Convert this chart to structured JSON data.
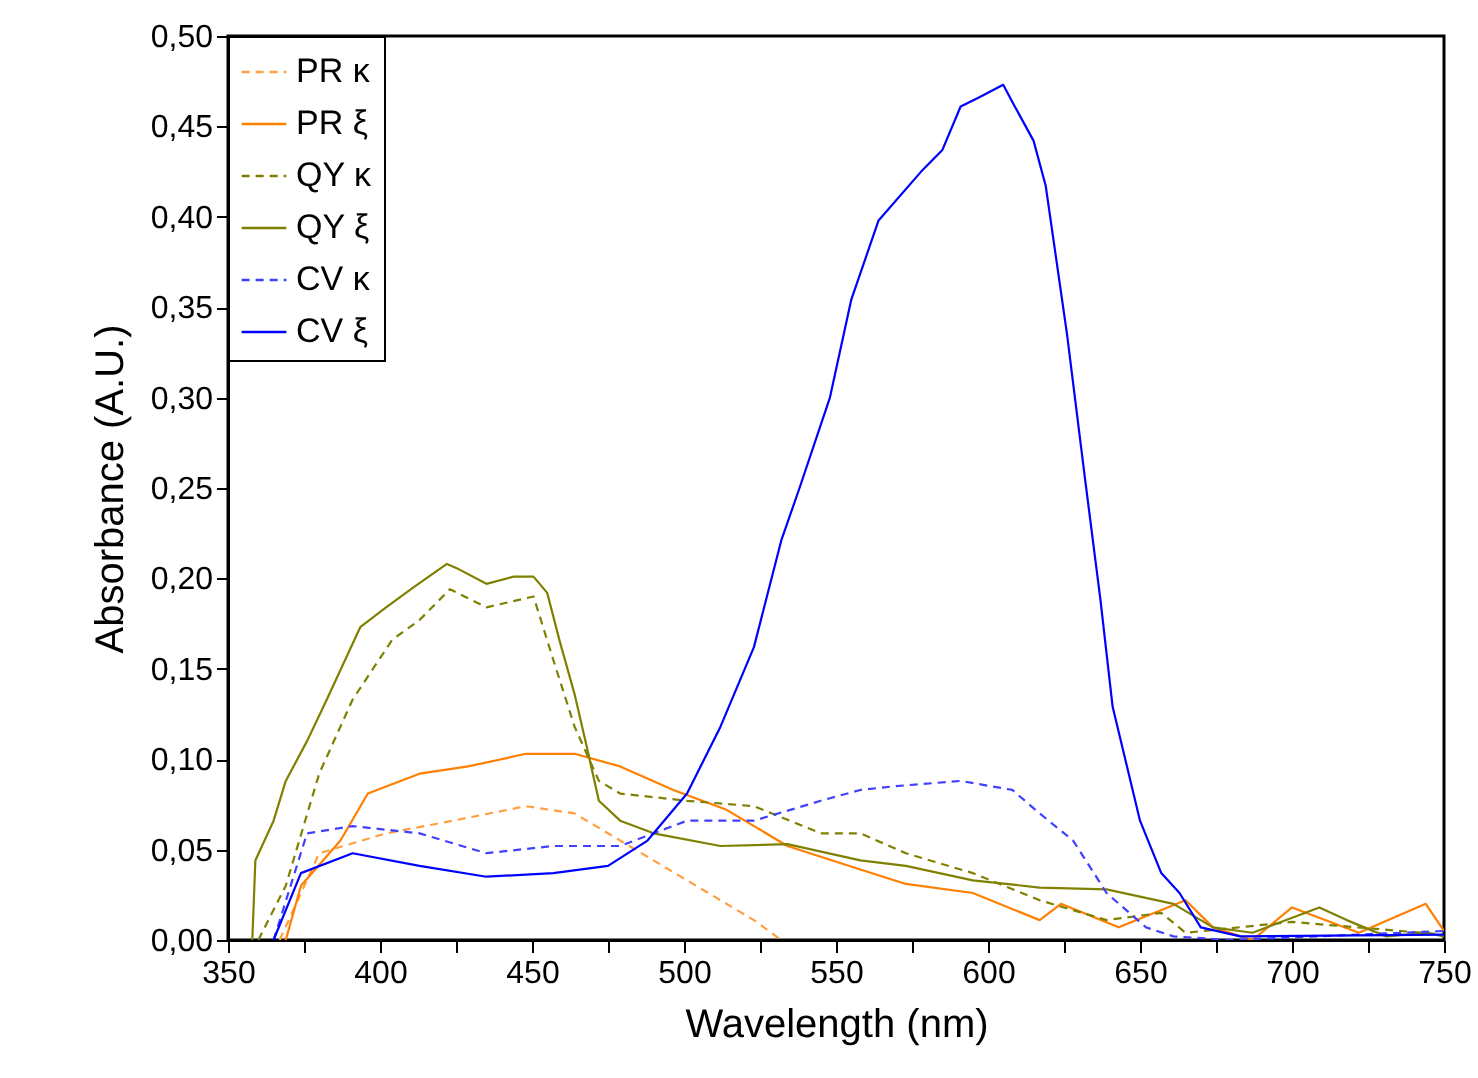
{
  "chart_data": {
    "type": "line",
    "xlabel": "Wavelength (nm)",
    "ylabel": "Absorbance (A.U.)",
    "xlim": [
      350,
      750
    ],
    "xticks": [
      350,
      {
        "value": 375,
        "label": null
      },
      400,
      {
        "value": 425,
        "label": null
      },
      450,
      {
        "value": 475,
        "label": null
      },
      500,
      {
        "value": 525,
        "label": null
      },
      550,
      {
        "value": 575,
        "label": null
      },
      600,
      {
        "value": 625,
        "label": null
      },
      650,
      {
        "value": 675,
        "label": null
      },
      700,
      {
        "value": 725,
        "label": null
      },
      750
    ],
    "ylim": [
      0,
      0.5
    ],
    "yticks": [
      {
        "value": 0,
        "label": "0,00"
      },
      {
        "value": 0.05,
        "label": "0,05"
      },
      {
        "value": 0.1,
        "label": "0,10"
      },
      {
        "value": 0.15,
        "label": "0,15"
      },
      {
        "value": 0.2,
        "label": "0,20"
      },
      {
        "value": 0.25,
        "label": "0,25"
      },
      {
        "value": 0.3,
        "label": "0,30"
      },
      {
        "value": 0.35,
        "label": "0,35"
      },
      {
        "value": 0.4,
        "label": "0,40"
      },
      {
        "value": 0.45,
        "label": "0,45"
      },
      {
        "value": 0.5,
        "label": "0,50"
      }
    ],
    "legend": "top left",
    "grid": false,
    "series": [
      {
        "name": "PR κ",
        "color": "#ffa040",
        "line_style": "dashed",
        "x": [
          367,
          380,
          402,
          424,
          448,
          464,
          479,
          501,
          523,
          532
        ],
        "values": [
          0,
          0.048,
          0.059,
          0.066,
          0.074,
          0.07,
          0.055,
          0.033,
          0.011,
          0
        ]
      },
      {
        "name": "PR ξ",
        "color": "#ff7f00",
        "line_style": "solid",
        "x": [
          369,
          374,
          387,
          396,
          413,
          429,
          448,
          464,
          479,
          496.5,
          514,
          534,
          558,
          573,
          595,
          617,
          624,
          643,
          665,
          674,
          687,
          700,
          722,
          744,
          750
        ],
        "values": [
          0,
          0.03,
          0.055,
          0.081,
          0.092,
          0.096,
          0.103,
          0.103,
          0.096,
          0.083,
          0.072,
          0.052,
          0.039,
          0.031,
          0.026,
          0.011,
          0.02,
          0.007,
          0.022,
          0.007,
          0,
          0.018,
          0.004,
          0.02,
          0.005
        ]
      },
      {
        "name": "QY κ",
        "color": "#808000",
        "line_style": "dashed",
        "x": [
          360,
          369,
          380,
          391,
          404,
          413,
          423,
          435,
          450.5,
          457,
          464,
          472,
          479,
          501,
          523,
          545,
          558,
          573,
          595,
          617,
          639,
          657,
          665,
          700,
          750
        ],
        "values": [
          0,
          0.03,
          0.092,
          0.133,
          0.166,
          0.177,
          0.194,
          0.184,
          0.19,
          0.155,
          0.118,
          0.088,
          0.081,
          0.077,
          0.074,
          0.059,
          0.059,
          0.048,
          0.037,
          0.022,
          0.011,
          0.015,
          0.004,
          0.01,
          0.003
        ]
      },
      {
        "name": "QY ξ",
        "color": "#808000",
        "line_style": "solid",
        "x": [
          358,
          359,
          365,
          369,
          376,
          382.5,
          393.5,
          402,
          411,
          422,
          426,
          435,
          444,
          450.5,
          455,
          459,
          464,
          468,
          472,
          479,
          490,
          512,
          534,
          558,
          573,
          595,
          617,
          639,
          661,
          674,
          687,
          709,
          718,
          731,
          744,
          750
        ],
        "values": [
          0,
          0.044,
          0.066,
          0.088,
          0.11,
          0.133,
          0.173,
          0.184,
          0.195,
          0.208,
          0.205,
          0.197,
          0.201,
          0.201,
          0.192,
          0.166,
          0.136,
          0.107,
          0.077,
          0.066,
          0.059,
          0.052,
          0.053,
          0.044,
          0.041,
          0.033,
          0.029,
          0.028,
          0.02,
          0.007,
          0.004,
          0.018,
          0.011,
          0.002,
          0.004,
          0.002
        ]
      },
      {
        "name": "CV κ",
        "color": "#4040ff",
        "line_style": "dashed",
        "x": [
          365,
          376,
          391,
          413,
          435,
          457,
          479,
          501,
          523,
          545,
          558,
          569,
          591,
          608,
          617,
          628,
          639,
          652,
          661,
          680,
          750
        ],
        "values": [
          0,
          0.059,
          0.063,
          0.059,
          0.048,
          0.052,
          0.052,
          0.066,
          0.066,
          0.077,
          0.083,
          0.085,
          0.088,
          0.083,
          0.07,
          0.055,
          0.026,
          0.007,
          0.002,
          0,
          0.005
        ]
      },
      {
        "name": "CV ξ",
        "color": "#0000ff",
        "line_style": "solid",
        "x": [
          365,
          374,
          391,
          413,
          435,
          457,
          475,
          488,
          501,
          512,
          523,
          532,
          538,
          548,
          555,
          564,
          578,
          585,
          591,
          597,
          605,
          608.5,
          615,
          619,
          626,
          632,
          637,
          641,
          650,
          657,
          663,
          670,
          683,
          750
        ],
        "values": [
          0,
          0.037,
          0.048,
          0.041,
          0.035,
          0.037,
          0.041,
          0.055,
          0.081,
          0.118,
          0.162,
          0.221,
          0.25,
          0.3,
          0.354,
          0.398,
          0.425,
          0.437,
          0.461,
          0.466,
          0.473,
          0.462,
          0.442,
          0.417,
          0.335,
          0.254,
          0.188,
          0.129,
          0.066,
          0.037,
          0.026,
          0.007,
          0.002,
          0.003
        ]
      }
    ]
  }
}
